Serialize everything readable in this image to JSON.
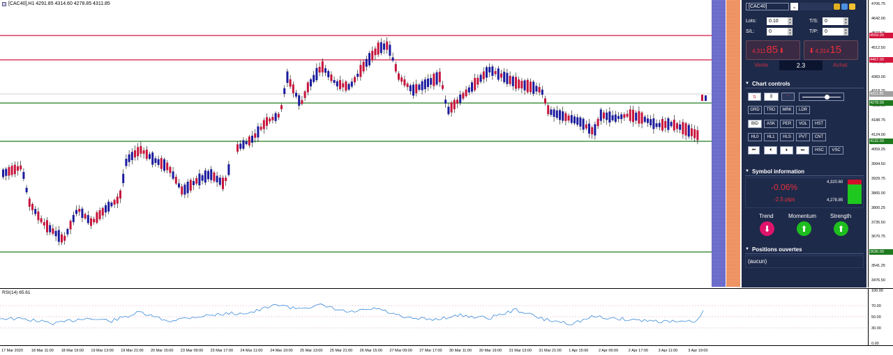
{
  "chart": {
    "title": "[CAC40],H1  4291.85 4314.60 4278.85 4311.85",
    "price_ticks": [
      "4706.75",
      "4642.00",
      "4577.25",
      "4512.50",
      "4447.75",
      "4383.00",
      "4318.25",
      "4253.50",
      "4188.75",
      "4124.00",
      "4059.25",
      "3994.50",
      "3929.75",
      "3865.00",
      "3800.25",
      "3735.50",
      "3670.75",
      "3606.00",
      "3541.25",
      "3476.50"
    ],
    "level_labels": [
      {
        "text": "4559.00",
        "color": "#d4143c"
      },
      {
        "text": "4467.00",
        "color": "#d4143c"
      },
      {
        "text": "4311.85",
        "color": "#a0a0a0"
      },
      {
        "text": "4278.00",
        "color": "#1e7a1e"
      },
      {
        "text": "4132.00",
        "color": "#1e7a1e"
      },
      {
        "text": "3630.00",
        "color": "#1e7a1e"
      }
    ],
    "x_ticks": [
      "17 Mar 2020",
      "18 Mar 11:00",
      "18 Mar 19:00",
      "19 Mar 13:00",
      "19 Mar 21:00",
      "20 Mar 15:00",
      "23 Mar 09:00",
      "23 Mar 17:00",
      "24 Mar 11:00",
      "24 Mar 19:00",
      "25 Mar 13:00",
      "25 Mar 21:00",
      "26 Mar 15:00",
      "27 Mar 09:00",
      "27 Mar 17:00",
      "30 Mar 11:00",
      "30 Mar 19:00",
      "31 Mar 13:00",
      "31 Mar 21:00",
      "1 Apr 15:00",
      "2 Apr 09:00",
      "2 Apr 17:00",
      "3 Apr 11:00",
      "3 Apr 19:00"
    ],
    "colors": {
      "bull": "#1b1b9e",
      "bear": "#c8143c",
      "red_line": "#d4143c",
      "green_line": "#1e7a1e"
    }
  },
  "rsi": {
    "label": "RSI(14) 65.61",
    "ticks": [
      "100.00",
      "70.00",
      "50.00",
      "30.00",
      "0.00"
    ]
  },
  "panel": {
    "symbol": "[CAC40]",
    "lots_label": "Lots:",
    "lots_value": "0.10",
    "sl_label": "S/L:",
    "sl_value": "0",
    "ts_label": "T/S:",
    "ts_value": "0",
    "tp_label": "T/P:",
    "tp_value": "0",
    "sell_small": "4,311",
    "sell_big": "85",
    "sell_label": "Vente",
    "buy_small": "4,314",
    "buy_big": "15",
    "buy_label": "Achat",
    "spread": "2.3",
    "chart_controls": "Chart controls",
    "btn_row1": [
      "GRD",
      "TRD",
      "MRK",
      "LDR"
    ],
    "btn_row2": [
      "BID",
      "ASK",
      "PER",
      "VOL",
      "HST"
    ],
    "btn_row3": [
      "HL0",
      "HL1",
      "HLS",
      "PVT",
      "CNT"
    ],
    "btn_row4": [
      "HSC",
      "VSC"
    ],
    "symbol_info": "Symbol information",
    "change_pct": "-0.06%",
    "change_pips": "-2.5 pips",
    "high": "4,320.60",
    "low": "4,278.85",
    "trend": "Trend",
    "momentum": "Momentum",
    "strength": "Strength",
    "positions": "Positions ouvertes",
    "positions_value": "(aucun)"
  }
}
